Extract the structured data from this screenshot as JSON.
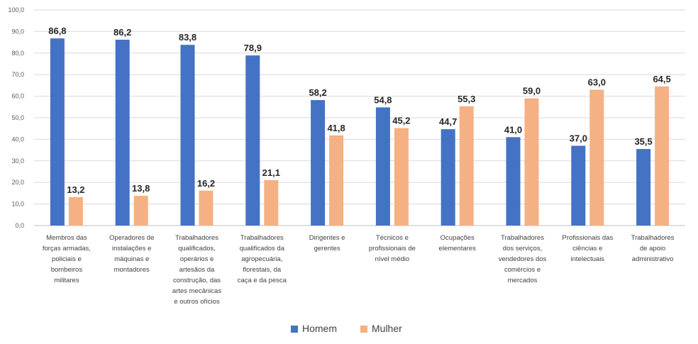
{
  "chart_data": {
    "type": "bar",
    "categories": [
      "Membros das forças armadas, policiais e bombeiros militares",
      "Operadores de instalações e máquinas e montadores",
      "Trabalhadores qualificados, operários e artesãos da construção, das artes mecânicas e outros ofícios",
      "Trabalhadores qualificados da agropecuária, florestais, da caça e da pesca",
      "Dirigentes e gerentes",
      "Técnicos e profissionais de nível médio",
      "Ocupações elementares",
      "Trabalhadores dos serviços, vendedores dos comércios e mercados",
      "Profissionais das ciências e intelectuais",
      "Trabalhadores de apoio administrativo"
    ],
    "category_lines": [
      [
        "Membros das",
        "forças armadas,",
        "policiais e",
        "bombeiros",
        "militares"
      ],
      [
        "Operadores de",
        "instalações e",
        "máquinas e",
        "montadores"
      ],
      [
        "Trabalhadores",
        "qualificados,",
        "operários e",
        "artesãos da",
        "construção, das",
        "artes mecânicas",
        "e outros ofícios"
      ],
      [
        "Trabalhadores",
        "qualificados da",
        "agropecuária,",
        "florestais, da",
        "caça e da pesca"
      ],
      [
        "Dirigentes e",
        "gerentes"
      ],
      [
        "Técnicos e",
        "profissionais de",
        "nível médio"
      ],
      [
        "Ocupações",
        "elementares"
      ],
      [
        "Trabalhadores",
        "dos serviços,",
        "vendedores dos",
        "comércios e",
        "mercados"
      ],
      [
        "Profissionais das",
        "ciências e",
        "intelectuais"
      ],
      [
        "Trabalhadores",
        "de apoio",
        "administrativo"
      ]
    ],
    "series": [
      {
        "name": "Homem",
        "color": "#4472C4",
        "values": [
          86.8,
          86.2,
          83.8,
          78.9,
          58.2,
          54.8,
          44.7,
          41.0,
          37.0,
          35.5
        ],
        "labels": [
          "86,8",
          "86,2",
          "83,8",
          "78,9",
          "58,2",
          "54,8",
          "44,7",
          "41,0",
          "37,0",
          "35,5"
        ]
      },
      {
        "name": "Mulher",
        "color": "#F4B183",
        "values": [
          13.2,
          13.8,
          16.2,
          21.1,
          41.8,
          45.2,
          55.3,
          59.0,
          63.0,
          64.5
        ],
        "labels": [
          "13,2",
          "13,8",
          "16,2",
          "21,1",
          "41,8",
          "45,2",
          "55,3",
          "59,0",
          "63,0",
          "64,5"
        ]
      }
    ],
    "y_ticks": [
      "0,0",
      "10,0",
      "20,0",
      "30,0",
      "40,0",
      "50,0",
      "60,0",
      "70,0",
      "80,0",
      "90,0",
      "100,0"
    ],
    "ylim": [
      0,
      100
    ],
    "grid": true,
    "legend_position": "bottom"
  }
}
